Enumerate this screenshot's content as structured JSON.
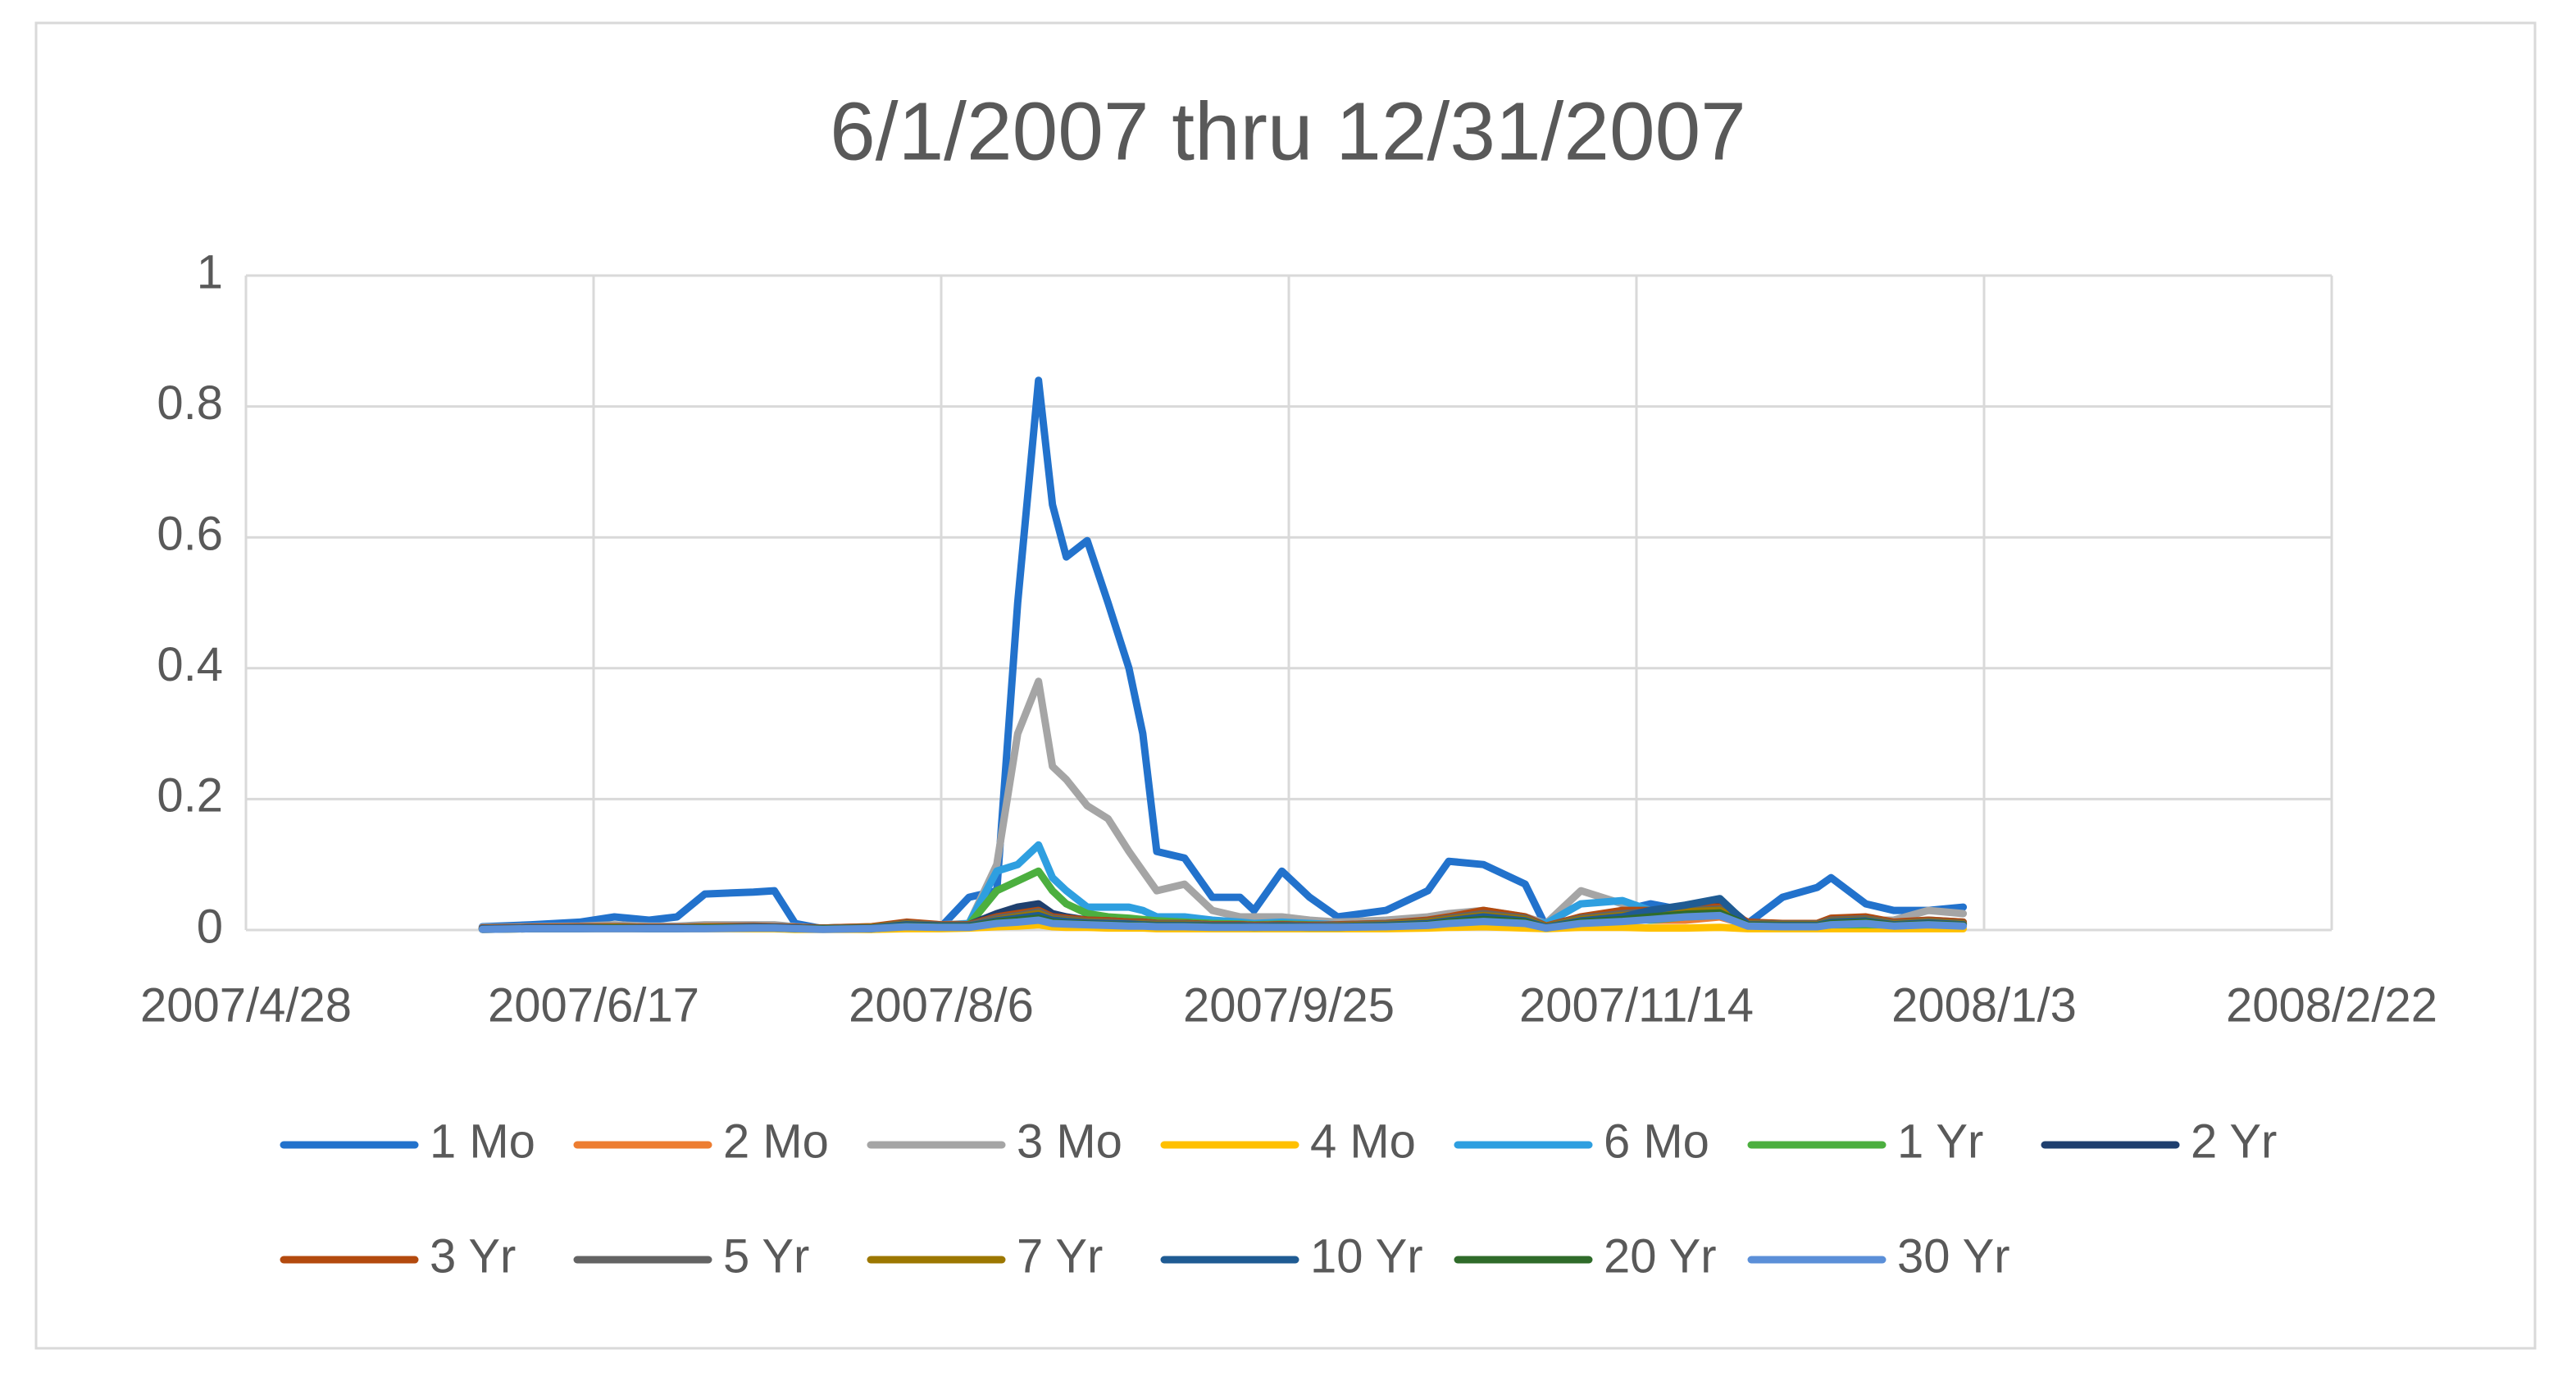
{
  "chart_data": {
    "type": "line",
    "title": "6/1/2007 thru 12/31/2007",
    "x": [
      "2007/6/1",
      "2007/6/8",
      "2007/6/15",
      "2007/6/20",
      "2007/6/25",
      "2007/6/29",
      "2007/7/3",
      "2007/7/10",
      "2007/7/13",
      "2007/7/16",
      "2007/7/20",
      "2007/7/27",
      "2007/8/1",
      "2007/8/6",
      "2007/8/10",
      "2007/8/14",
      "2007/8/17",
      "2007/8/20",
      "2007/8/22",
      "2007/8/24",
      "2007/8/27",
      "2007/8/30",
      "2007/9/2",
      "2007/9/4",
      "2007/9/6",
      "2007/9/10",
      "2007/9/14",
      "2007/9/18",
      "2007/9/20",
      "2007/9/24",
      "2007/9/28",
      "2007/10/2",
      "2007/10/9",
      "2007/10/15",
      "2007/10/18",
      "2007/10/23",
      "2007/10/29",
      "2007/11/1",
      "2007/11/6",
      "2007/11/12",
      "2007/11/16",
      "2007/11/21",
      "2007/11/26",
      "2007/11/30",
      "2007/12/5",
      "2007/12/10",
      "2007/12/12",
      "2007/12/17",
      "2007/12/21",
      "2007/12/26",
      "2007/12/31"
    ],
    "series": [
      {
        "name": "1 Mo",
        "color": "#2272cc",
        "values": [
          0.005,
          0.008,
          0.012,
          0.02,
          0.015,
          0.02,
          0.055,
          0.058,
          0.06,
          0.01,
          0.002,
          0.001,
          0.008,
          0.005,
          0.05,
          0.06,
          0.5,
          0.84,
          0.65,
          0.57,
          0.595,
          0.5,
          0.4,
          0.3,
          0.12,
          0.11,
          0.05,
          0.05,
          0.03,
          0.09,
          0.05,
          0.02,
          0.03,
          0.06,
          0.105,
          0.1,
          0.07,
          0.005,
          0.01,
          0.03,
          0.04,
          0.03,
          0.02,
          0.01,
          0.05,
          0.065,
          0.08,
          0.04,
          0.03,
          0.03,
          0.035
        ]
      },
      {
        "name": "2 Mo",
        "color": "#ed7d31",
        "values": [
          0.003,
          0.004,
          0.004,
          0.005,
          0.004,
          0.004,
          0.005,
          0.005,
          0.005,
          0.003,
          0.002,
          0.003,
          0.006,
          0.005,
          0.006,
          0.02,
          0.025,
          0.03,
          0.02,
          0.015,
          0.012,
          0.012,
          0.01,
          0.01,
          0.008,
          0.008,
          0.006,
          0.006,
          0.005,
          0.006,
          0.005,
          0.005,
          0.006,
          0.008,
          0.01,
          0.012,
          0.01,
          0.005,
          0.02,
          0.02,
          0.015,
          0.015,
          0.02,
          0.008,
          0.006,
          0.006,
          0.008,
          0.008,
          0.008,
          0.01,
          0.01
        ]
      },
      {
        "name": "3 Mo",
        "color": "#a5a5a5",
        "values": [
          0.004,
          0.005,
          0.006,
          0.008,
          0.006,
          0.006,
          0.008,
          0.008,
          0.008,
          0.005,
          0.003,
          0.005,
          0.01,
          0.008,
          0.01,
          0.1,
          0.3,
          0.38,
          0.25,
          0.23,
          0.19,
          0.17,
          0.12,
          0.09,
          0.06,
          0.07,
          0.03,
          0.02,
          0.02,
          0.02,
          0.015,
          0.012,
          0.015,
          0.02,
          0.025,
          0.03,
          0.02,
          0.01,
          0.06,
          0.04,
          0.02,
          0.03,
          0.03,
          0.01,
          0.01,
          0.01,
          0.015,
          0.015,
          0.015,
          0.03,
          0.025
        ]
      },
      {
        "name": "4 Mo",
        "color": "#ffc000",
        "values": [
          0.001,
          0.002,
          0.002,
          0.002,
          0.002,
          0.002,
          0.002,
          0.002,
          0.002,
          0.001,
          0.001,
          0.001,
          0.002,
          0.002,
          0.003,
          0.005,
          0.006,
          0.008,
          0.005,
          0.004,
          0.004,
          0.003,
          0.003,
          0.003,
          0.002,
          0.002,
          0.002,
          0.002,
          0.002,
          0.002,
          0.002,
          0.002,
          0.002,
          0.003,
          0.004,
          0.005,
          0.003,
          0.002,
          0.004,
          0.004,
          0.003,
          0.003,
          0.004,
          0.002,
          0.002,
          0.002,
          0.002,
          0.002,
          0.002,
          0.002,
          0.002
        ]
      },
      {
        "name": "6 Mo",
        "color": "#2e9fe0",
        "values": [
          0.003,
          0.004,
          0.004,
          0.005,
          0.004,
          0.004,
          0.005,
          0.005,
          0.005,
          0.004,
          0.003,
          0.004,
          0.008,
          0.006,
          0.01,
          0.09,
          0.1,
          0.13,
          0.08,
          0.06,
          0.035,
          0.035,
          0.035,
          0.03,
          0.02,
          0.02,
          0.015,
          0.012,
          0.01,
          0.012,
          0.01,
          0.008,
          0.01,
          0.012,
          0.015,
          0.02,
          0.015,
          0.01,
          0.04,
          0.045,
          0.03,
          0.03,
          0.035,
          0.01,
          0.008,
          0.008,
          0.01,
          0.01,
          0.01,
          0.015,
          0.012
        ]
      },
      {
        "name": "1 Yr",
        "color": "#4caf3f",
        "values": [
          0.002,
          0.003,
          0.003,
          0.004,
          0.003,
          0.003,
          0.004,
          0.004,
          0.004,
          0.003,
          0.002,
          0.003,
          0.006,
          0.005,
          0.008,
          0.06,
          0.075,
          0.09,
          0.06,
          0.04,
          0.025,
          0.02,
          0.018,
          0.016,
          0.014,
          0.012,
          0.01,
          0.009,
          0.008,
          0.009,
          0.008,
          0.007,
          0.008,
          0.01,
          0.012,
          0.015,
          0.012,
          0.006,
          0.015,
          0.018,
          0.015,
          0.02,
          0.022,
          0.008,
          0.006,
          0.006,
          0.008,
          0.008,
          0.008,
          0.01,
          0.009
        ]
      },
      {
        "name": "2 Yr",
        "color": "#1f3f6e",
        "values": [
          0.003,
          0.004,
          0.004,
          0.005,
          0.004,
          0.004,
          0.005,
          0.005,
          0.005,
          0.004,
          0.003,
          0.004,
          0.008,
          0.006,
          0.008,
          0.025,
          0.035,
          0.04,
          0.025,
          0.02,
          0.015,
          0.014,
          0.012,
          0.012,
          0.01,
          0.01,
          0.008,
          0.008,
          0.007,
          0.008,
          0.007,
          0.007,
          0.008,
          0.012,
          0.015,
          0.02,
          0.015,
          0.006,
          0.015,
          0.02,
          0.025,
          0.035,
          0.045,
          0.01,
          0.008,
          0.008,
          0.012,
          0.012,
          0.01,
          0.012,
          0.01
        ]
      },
      {
        "name": "3 Yr",
        "color": "#b34a0e",
        "values": [
          0.003,
          0.004,
          0.005,
          0.005,
          0.004,
          0.004,
          0.005,
          0.006,
          0.005,
          0.004,
          0.003,
          0.005,
          0.012,
          0.008,
          0.008,
          0.02,
          0.025,
          0.03,
          0.02,
          0.018,
          0.015,
          0.014,
          0.012,
          0.012,
          0.01,
          0.01,
          0.008,
          0.008,
          0.007,
          0.008,
          0.007,
          0.008,
          0.01,
          0.015,
          0.02,
          0.03,
          0.02,
          0.006,
          0.02,
          0.03,
          0.03,
          0.035,
          0.035,
          0.012,
          0.01,
          0.01,
          0.018,
          0.02,
          0.012,
          0.015,
          0.012
        ]
      },
      {
        "name": "5 Yr",
        "color": "#636363",
        "values": [
          0.002,
          0.003,
          0.004,
          0.004,
          0.003,
          0.003,
          0.004,
          0.005,
          0.004,
          0.003,
          0.002,
          0.004,
          0.01,
          0.007,
          0.007,
          0.018,
          0.022,
          0.028,
          0.018,
          0.016,
          0.013,
          0.012,
          0.01,
          0.01,
          0.009,
          0.009,
          0.007,
          0.007,
          0.006,
          0.007,
          0.006,
          0.007,
          0.009,
          0.013,
          0.018,
          0.025,
          0.018,
          0.005,
          0.018,
          0.025,
          0.028,
          0.03,
          0.032,
          0.01,
          0.009,
          0.009,
          0.015,
          0.017,
          0.01,
          0.013,
          0.01
        ]
      },
      {
        "name": "7 Yr",
        "color": "#9c7700",
        "values": [
          0.002,
          0.003,
          0.003,
          0.004,
          0.003,
          0.003,
          0.004,
          0.004,
          0.004,
          0.003,
          0.002,
          0.004,
          0.009,
          0.006,
          0.006,
          0.015,
          0.02,
          0.025,
          0.016,
          0.014,
          0.012,
          0.011,
          0.009,
          0.009,
          0.008,
          0.008,
          0.006,
          0.006,
          0.005,
          0.006,
          0.005,
          0.006,
          0.008,
          0.012,
          0.016,
          0.022,
          0.016,
          0.005,
          0.016,
          0.022,
          0.025,
          0.028,
          0.03,
          0.009,
          0.008,
          0.008,
          0.013,
          0.015,
          0.009,
          0.012,
          0.009
        ]
      },
      {
        "name": "10 Yr",
        "color": "#1f5b93",
        "values": [
          0.002,
          0.003,
          0.003,
          0.003,
          0.003,
          0.003,
          0.003,
          0.004,
          0.004,
          0.003,
          0.002,
          0.003,
          0.008,
          0.006,
          0.006,
          0.014,
          0.018,
          0.022,
          0.015,
          0.013,
          0.011,
          0.01,
          0.009,
          0.008,
          0.007,
          0.007,
          0.006,
          0.006,
          0.005,
          0.006,
          0.005,
          0.005,
          0.007,
          0.01,
          0.014,
          0.02,
          0.014,
          0.004,
          0.014,
          0.02,
          0.03,
          0.038,
          0.048,
          0.008,
          0.007,
          0.007,
          0.012,
          0.014,
          0.008,
          0.011,
          0.008
        ]
      },
      {
        "name": "20 Yr",
        "color": "#2f6b2a",
        "values": [
          0.001,
          0.002,
          0.002,
          0.003,
          0.002,
          0.002,
          0.003,
          0.003,
          0.003,
          0.002,
          0.002,
          0.002,
          0.006,
          0.005,
          0.005,
          0.012,
          0.015,
          0.018,
          0.012,
          0.01,
          0.009,
          0.008,
          0.007,
          0.007,
          0.006,
          0.006,
          0.005,
          0.005,
          0.004,
          0.005,
          0.004,
          0.004,
          0.006,
          0.008,
          0.012,
          0.016,
          0.012,
          0.003,
          0.012,
          0.016,
          0.02,
          0.024,
          0.026,
          0.007,
          0.006,
          0.006,
          0.01,
          0.012,
          0.007,
          0.009,
          0.007
        ]
      },
      {
        "name": "30 Yr",
        "color": "#5b8fd8",
        "values": [
          0.001,
          0.002,
          0.002,
          0.002,
          0.002,
          0.002,
          0.002,
          0.003,
          0.003,
          0.002,
          0.001,
          0.002,
          0.005,
          0.004,
          0.004,
          0.01,
          0.012,
          0.015,
          0.01,
          0.009,
          0.008,
          0.007,
          0.006,
          0.006,
          0.005,
          0.005,
          0.004,
          0.004,
          0.004,
          0.004,
          0.004,
          0.004,
          0.005,
          0.007,
          0.01,
          0.013,
          0.01,
          0.003,
          0.01,
          0.013,
          0.016,
          0.02,
          0.022,
          0.006,
          0.005,
          0.005,
          0.008,
          0.01,
          0.006,
          0.008,
          0.006
        ]
      }
    ],
    "xlim": [
      "2007/4/28",
      "2008/2/22"
    ],
    "xticks": [
      "2007/4/28",
      "2007/6/17",
      "2007/8/6",
      "2007/9/25",
      "2007/11/14",
      "2008/1/3",
      "2008/2/22"
    ],
    "ylim": [
      0,
      1
    ],
    "yticks": [
      0,
      0.2,
      0.4,
      0.6,
      0.8,
      1
    ],
    "grid": true
  }
}
